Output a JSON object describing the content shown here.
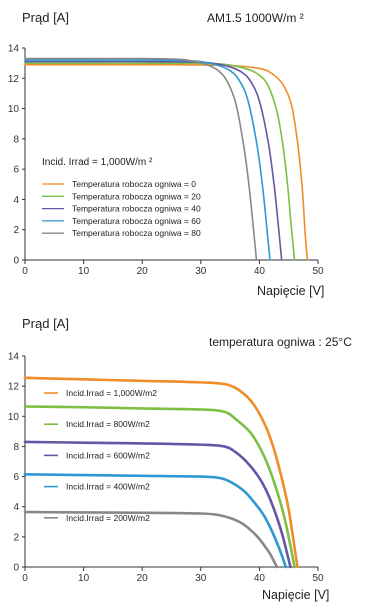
{
  "chart_data": [
    {
      "type": "line",
      "ylabel": "Prąd [A]",
      "annotation": "AM1.5 1000W/m ²",
      "xlabel": "Napięcie [V]",
      "xlim": [
        0,
        50
      ],
      "ylim": [
        0,
        14
      ],
      "x_ticks": [
        "0",
        "10",
        "20",
        "30",
        "40",
        "50"
      ],
      "y_ticks": [
        "0",
        "2",
        "4",
        "6",
        "8",
        "10",
        "12",
        "14"
      ],
      "legend_title": "Incid. Irrad = 1,000W/m ²",
      "legend_position": "left-center",
      "series": [
        {
          "name": "Temperatura robocza ogniwa = 0",
          "color": "#f28c28",
          "x": [
            0,
            10,
            20,
            30,
            36,
            40,
            42,
            44,
            45.5,
            46.5,
            47.3,
            47.8,
            48.2
          ],
          "y": [
            12.9,
            12.9,
            12.9,
            12.88,
            12.82,
            12.65,
            12.35,
            11.6,
            10.2,
            7.8,
            4.8,
            1.8,
            0
          ]
        },
        {
          "name": "Temperatura robocza ogniwa = 20",
          "color": "#7dbf43",
          "x": [
            0,
            10,
            20,
            30,
            34,
            38,
            40,
            41.5,
            43,
            44,
            44.8,
            45.4,
            46
          ],
          "y": [
            13.0,
            13.0,
            13.0,
            12.98,
            12.92,
            12.6,
            12.2,
            11.5,
            9.8,
            7.6,
            5.0,
            2.4,
            0
          ]
        },
        {
          "name": "Temperatura robocza ogniwa = 40",
          "color": "#6656a6",
          "x": [
            0,
            10,
            20,
            28,
            32,
            35,
            37,
            38.5,
            40,
            41.5,
            42.5,
            43.2,
            43.8
          ],
          "y": [
            13.1,
            13.1,
            13.1,
            13.08,
            13.0,
            12.75,
            12.4,
            11.8,
            10.5,
            7.8,
            5.0,
            2.4,
            0
          ]
        },
        {
          "name": "Temperatura robocza ogniwa = 60",
          "color": "#2c98d2",
          "x": [
            0,
            10,
            20,
            26,
            30,
            33,
            35,
            36.5,
            38,
            39.5,
            40.5,
            41.2,
            41.8
          ],
          "y": [
            13.2,
            13.2,
            13.2,
            13.18,
            13.1,
            12.85,
            12.5,
            11.9,
            10.6,
            7.8,
            5.0,
            2.4,
            0
          ]
        },
        {
          "name": "Temperatura robocza ogniwa = 80",
          "color": "#888888",
          "x": [
            0,
            10,
            20,
            25,
            28,
            31,
            33,
            34.5,
            36,
            37.3,
            38.2,
            38.9,
            39.5
          ],
          "y": [
            13.3,
            13.3,
            13.3,
            13.27,
            13.18,
            12.9,
            12.5,
            11.8,
            10.3,
            7.6,
            5.0,
            2.4,
            0
          ]
        }
      ]
    },
    {
      "type": "line",
      "ylabel": "Prąd [A]",
      "annotation": "temperatura ogniwa : 25°C",
      "xlabel": "Napięcie [V]",
      "xlim": [
        0,
        50
      ],
      "ylim": [
        0,
        14
      ],
      "x_ticks": [
        "0",
        "10",
        "20",
        "30",
        "40",
        "50"
      ],
      "y_ticks": [
        "0",
        "2",
        "4",
        "6",
        "8",
        "10",
        "12",
        "14"
      ],
      "legend_position": "left",
      "series": [
        {
          "name": "Incid.Irrad = 1,000W/m2",
          "color": "#f28c28",
          "x": [
            0,
            10,
            20,
            30,
            34.5,
            37,
            39,
            41,
            42.5,
            44,
            45,
            45.8,
            46.5
          ],
          "y": [
            12.55,
            12.45,
            12.35,
            12.25,
            12.1,
            11.6,
            10.8,
            9.4,
            7.8,
            5.6,
            3.8,
            1.8,
            0
          ]
        },
        {
          "name": "Incid.Irrad = 800W/m2",
          "color": "#7dbf43",
          "x": [
            0,
            10,
            20,
            30,
            34,
            36,
            38.5,
            40.5,
            42,
            43.5,
            44.5,
            45.3,
            46
          ],
          "y": [
            10.65,
            10.6,
            10.52,
            10.45,
            10.3,
            9.8,
            8.9,
            7.6,
            6.2,
            4.4,
            2.9,
            1.4,
            0
          ]
        },
        {
          "name": "Incid.Irrad = 600W/m2",
          "color": "#6656a6",
          "x": [
            0,
            10,
            20,
            30,
            34,
            36,
            38,
            40,
            41.5,
            42.8,
            43.8,
            44.6,
            45.3
          ],
          "y": [
            8.3,
            8.25,
            8.2,
            8.12,
            8.0,
            7.6,
            6.9,
            5.9,
            4.8,
            3.5,
            2.3,
            1.1,
            0
          ]
        },
        {
          "name": "Incid.Irrad = 400W/m2",
          "color": "#2c98d2",
          "x": [
            0,
            10,
            20,
            30,
            33.5,
            35.5,
            37.5,
            39.3,
            40.8,
            42,
            43,
            43.8,
            44.5
          ],
          "y": [
            6.15,
            6.1,
            6.05,
            6.0,
            5.88,
            5.55,
            5.0,
            4.2,
            3.4,
            2.5,
            1.6,
            0.8,
            0
          ]
        },
        {
          "name": "Incid.Irrad = 200W/m2",
          "color": "#888888",
          "x": [
            0,
            10,
            20,
            30,
            33,
            35,
            37,
            38.5,
            39.8,
            40.8,
            41.7,
            42.4,
            43
          ],
          "y": [
            3.65,
            3.62,
            3.6,
            3.55,
            3.45,
            3.25,
            2.9,
            2.45,
            1.95,
            1.45,
            0.95,
            0.45,
            0
          ]
        }
      ]
    }
  ]
}
